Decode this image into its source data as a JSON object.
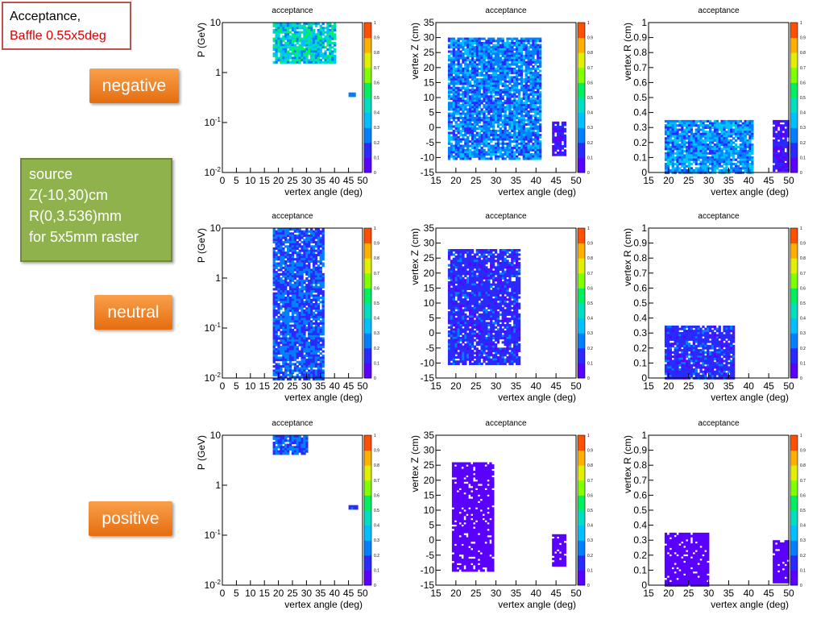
{
  "slide": {
    "title_line1": "Acceptance,",
    "title_line2": "Baffle 0.55x5deg",
    "source_lines": [
      "source",
      "Z(-10,30)cm",
      "R(0,3.536)mm",
      "for 5x5mm raster"
    ],
    "row_labels": [
      "negative",
      "neutral",
      "positive"
    ]
  },
  "colorbar": {
    "ticks": [
      "0",
      "0.1",
      "0.2",
      "0.3",
      "0.4",
      "0.5",
      "0.6",
      "0.7",
      "0.8",
      "0.9",
      "1"
    ],
    "palette": [
      "#5a00ff",
      "#2a2aff",
      "#0080ff",
      "#00c0ff",
      "#00e0c0",
      "#00f060",
      "#80ff00",
      "#e0f000",
      "#ffb000",
      "#ff5000",
      "#ff0000"
    ]
  },
  "chart_data": [
    {
      "type": "heatmap",
      "row": "negative",
      "title": "acceptance",
      "xlabel": "vertex angle (deg)",
      "ylabel": "P (GeV)",
      "log_y": true,
      "xlim": [
        0,
        50
      ],
      "ylim": [
        0.01,
        10
      ],
      "xticks": [
        "0",
        "5",
        "10",
        "15",
        "20",
        "25",
        "30",
        "35",
        "40",
        "45",
        "50"
      ],
      "yticks": [
        "10^-2",
        "10^-1",
        "1",
        "10"
      ],
      "regions": [
        {
          "x": [
            18,
            40
          ],
          "y": [
            1.6,
            10
          ],
          "level": 0.4
        },
        {
          "x": [
            45,
            47.5
          ],
          "y": [
            0.35,
            0.4
          ],
          "level": 0.2
        }
      ]
    },
    {
      "type": "heatmap",
      "row": "negative",
      "title": "acceptance",
      "xlabel": "vertex angle (deg)",
      "ylabel": "vertex Z (cm)",
      "log_y": false,
      "xlim": [
        15,
        50
      ],
      "ylim": [
        -15,
        35
      ],
      "xticks": [
        "15",
        "20",
        "25",
        "30",
        "35",
        "40",
        "45",
        "50"
      ],
      "yticks": [
        "-15",
        "-10",
        "-5",
        "0",
        "5",
        "10",
        "15",
        "20",
        "25",
        "30",
        "35"
      ],
      "regions": [
        {
          "x": [
            18,
            41
          ],
          "y": [
            -10,
            30
          ],
          "level": 0.25
        },
        {
          "x": [
            44,
            47
          ],
          "y": [
            -9,
            2
          ],
          "level": 0.1
        }
      ]
    },
    {
      "type": "heatmap",
      "row": "negative",
      "title": "acceptance",
      "xlabel": "vertex angle (deg)",
      "ylabel": "vertex R (cm)",
      "log_y": false,
      "xlim": [
        15,
        50
      ],
      "ylim": [
        0,
        1
      ],
      "xticks": [
        "15",
        "20",
        "25",
        "30",
        "35",
        "40",
        "45",
        "50"
      ],
      "yticks": [
        "0",
        "0.1",
        "0.2",
        "0.3",
        "0.4",
        "0.5",
        "0.6",
        "0.7",
        "0.8",
        "0.9",
        "1"
      ],
      "regions": [
        {
          "x": [
            19,
            41
          ],
          "y": [
            0,
            0.35
          ],
          "level": 0.28
        },
        {
          "x": [
            46,
            50
          ],
          "y": [
            0.02,
            0.35
          ],
          "level": 0.1
        }
      ]
    },
    {
      "type": "heatmap",
      "row": "neutral",
      "title": "acceptance",
      "xlabel": "vertex angle (deg)",
      "ylabel": "P (GeV)",
      "log_y": true,
      "xlim": [
        0,
        50
      ],
      "ylim": [
        0.01,
        10
      ],
      "xticks": [
        "0",
        "5",
        "10",
        "15",
        "20",
        "25",
        "30",
        "35",
        "40",
        "45",
        "50"
      ],
      "yticks": [
        "10^-2",
        "10^-1",
        "1",
        "10"
      ],
      "regions": [
        {
          "x": [
            18,
            36
          ],
          "y": [
            0.01,
            10
          ],
          "level": 0.2
        }
      ]
    },
    {
      "type": "heatmap",
      "row": "neutral",
      "title": "acceptance",
      "xlabel": "vertex angle (deg)",
      "ylabel": "vertex Z (cm)",
      "log_y": false,
      "xlim": [
        15,
        50
      ],
      "ylim": [
        -15,
        35
      ],
      "xticks": [
        "15",
        "20",
        "25",
        "30",
        "35",
        "40",
        "45",
        "50"
      ],
      "yticks": [
        "-15",
        "-10",
        "-5",
        "0",
        "5",
        "10",
        "15",
        "20",
        "25",
        "30",
        "35"
      ],
      "regions": [
        {
          "x": [
            18,
            36
          ],
          "y": [
            -10,
            28
          ],
          "level": 0.15
        }
      ]
    },
    {
      "type": "heatmap",
      "row": "neutral",
      "title": "acceptance",
      "xlabel": "vertex angle (deg)",
      "ylabel": "vertex R (cm)",
      "log_y": false,
      "xlim": [
        15,
        50
      ],
      "ylim": [
        0,
        1
      ],
      "xticks": [
        "15",
        "20",
        "25",
        "30",
        "35",
        "40",
        "45",
        "50"
      ],
      "yticks": [
        "0",
        "0.1",
        "0.2",
        "0.3",
        "0.4",
        "0.5",
        "0.6",
        "0.7",
        "0.8",
        "0.9",
        "1"
      ],
      "regions": [
        {
          "x": [
            19,
            36
          ],
          "y": [
            0,
            0.35
          ],
          "level": 0.15
        }
      ]
    },
    {
      "type": "heatmap",
      "row": "positive",
      "title": "acceptance",
      "xlabel": "vertex angle (deg)",
      "ylabel": "P (GeV)",
      "log_y": true,
      "xlim": [
        0,
        50
      ],
      "ylim": [
        0.01,
        10
      ],
      "xticks": [
        "0",
        "5",
        "10",
        "15",
        "20",
        "25",
        "30",
        "35",
        "40",
        "45",
        "50"
      ],
      "yticks": [
        "10^-2",
        "10^-1",
        "1",
        "10"
      ],
      "regions": [
        {
          "x": [
            18,
            30
          ],
          "y": [
            4.5,
            10
          ],
          "level": 0.2
        },
        {
          "x": [
            45,
            48
          ],
          "y": [
            0.35,
            0.4
          ],
          "level": 0.15
        }
      ]
    },
    {
      "type": "heatmap",
      "row": "positive",
      "title": "acceptance",
      "xlabel": "vertex angle (deg)",
      "ylabel": "vertex Z (cm)",
      "log_y": false,
      "xlim": [
        15,
        50
      ],
      "ylim": [
        -15,
        35
      ],
      "xticks": [
        "15",
        "20",
        "25",
        "30",
        "35",
        "40",
        "45",
        "50"
      ],
      "yticks": [
        "-15",
        "-10",
        "-5",
        "0",
        "5",
        "10",
        "15",
        "20",
        "25",
        "30",
        "35"
      ],
      "regions": [
        {
          "x": [
            19,
            29
          ],
          "y": [
            -10,
            26
          ],
          "level": 0.04
        },
        {
          "x": [
            44,
            47
          ],
          "y": [
            -8,
            2
          ],
          "level": 0.04
        }
      ]
    },
    {
      "type": "heatmap",
      "row": "positive",
      "title": "acceptance",
      "xlabel": "vertex angle (deg)",
      "ylabel": "vertex R (cm)",
      "log_y": false,
      "xlim": [
        15,
        50
      ],
      "ylim": [
        0,
        1
      ],
      "xticks": [
        "15",
        "20",
        "25",
        "30",
        "35",
        "40",
        "45",
        "50"
      ],
      "yticks": [
        "0",
        "0.1",
        "0.2",
        "0.3",
        "0.4",
        "0.5",
        "0.6",
        "0.7",
        "0.8",
        "0.9",
        "1"
      ],
      "regions": [
        {
          "x": [
            19,
            30
          ],
          "y": [
            0,
            0.35
          ],
          "level": 0.04
        },
        {
          "x": [
            46,
            50
          ],
          "y": [
            0.02,
            0.3
          ],
          "level": 0.04
        }
      ]
    }
  ]
}
